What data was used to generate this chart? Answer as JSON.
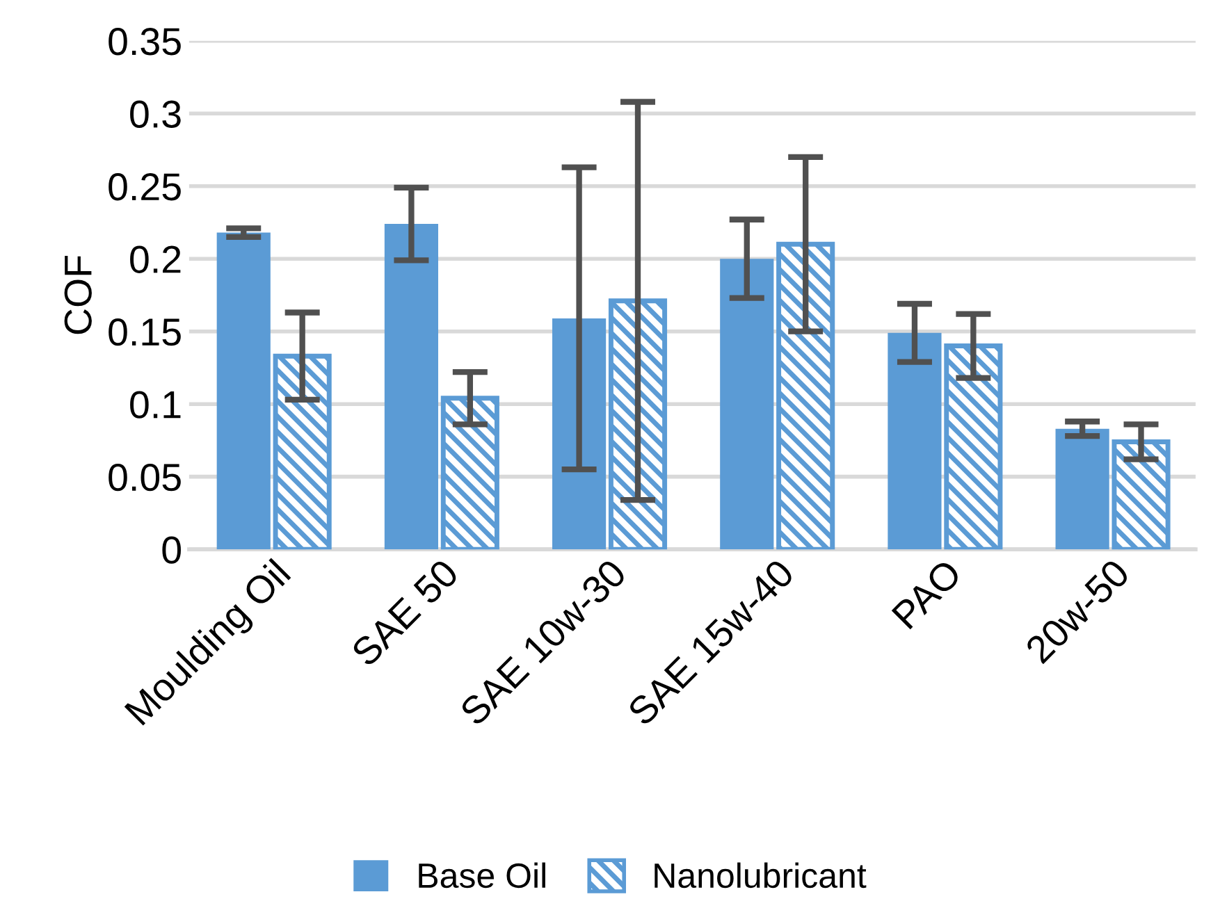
{
  "chart_data": {
    "type": "bar",
    "ylabel": "COF",
    "categories": [
      "Moulding Oil",
      "SAE 50",
      "SAE 10w-30",
      "SAE 15w-40",
      "PAO",
      "20w-50"
    ],
    "series": [
      {
        "name": "Base Oil",
        "color": "#5b9bd5",
        "values": [
          0.218,
          0.224,
          0.159,
          0.2,
          0.149,
          0.083
        ],
        "errors": [
          0.003,
          0.025,
          0.104,
          0.027,
          0.02,
          0.005
        ]
      },
      {
        "name": "Nanolubricant",
        "color": "#5b9bd5",
        "values": [
          0.133,
          0.104,
          0.171,
          0.21,
          0.14,
          0.074
        ],
        "errors": [
          0.03,
          0.018,
          0.137,
          0.06,
          0.022,
          0.012
        ]
      }
    ],
    "ylim": [
      0,
      0.35
    ],
    "yticks": [
      {
        "value": 0,
        "label": "0"
      },
      0.05,
      {
        "value": 0.1,
        "label": "0.1"
      },
      0.15,
      {
        "value": 0.2,
        "label": "0.2"
      },
      0.25,
      {
        "value": 0.3,
        "label": "0.3"
      },
      0.35
    ],
    "grid": "y",
    "legend": "bottom"
  }
}
